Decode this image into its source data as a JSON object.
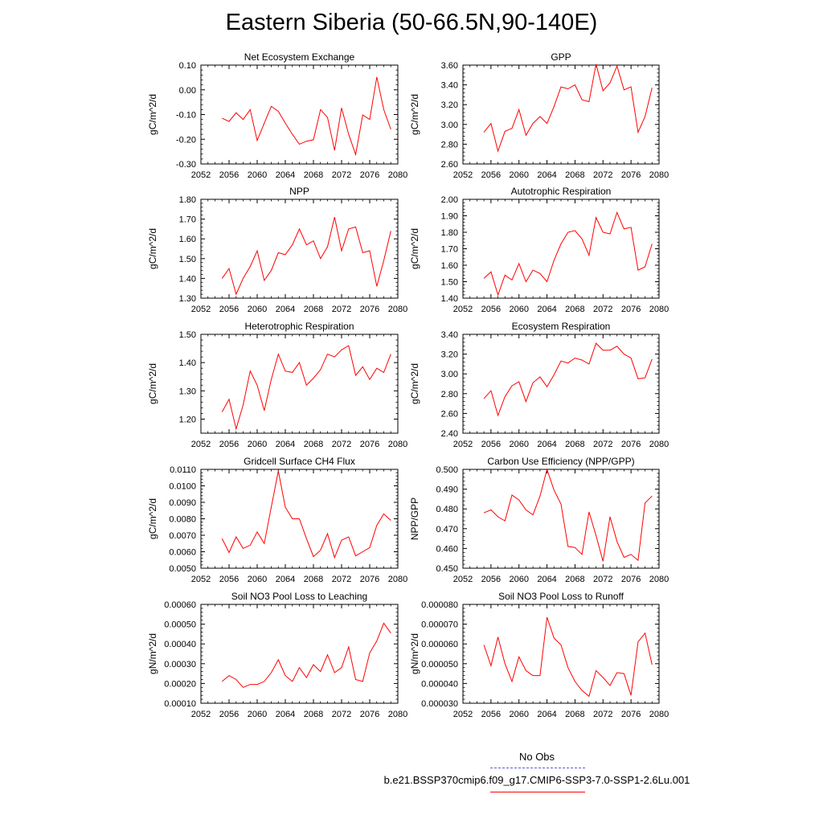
{
  "page": {
    "title": "Eastern Siberia (50-66.5N,90-140E)"
  },
  "legend": {
    "entries": [
      {
        "label": "No Obs",
        "color": "#5a5adc",
        "style": "dashed"
      },
      {
        "label": "b.e21.BSSP370cmip6.f09_g17.CMIP6-SSP3-7.0-SSP1-2.6Lu.001",
        "color": "#ff0000",
        "style": "solid"
      }
    ]
  },
  "chart_data": [
    {
      "type": "line",
      "title": "Net Ecosystem Exchange",
      "ylabel": "gC/m^2/d",
      "xlim": [
        2052,
        2080
      ],
      "ylim": [
        -0.3,
        0.1
      ],
      "xticks": [
        "2052",
        "2056",
        "2060",
        "2064",
        "2068",
        "2072",
        "2076",
        "2080"
      ],
      "yticks": [
        "-0.30",
        "-0.20",
        "-0.10",
        "0.00",
        "0.10"
      ],
      "x": [
        2055,
        2056,
        2057,
        2058,
        2059,
        2060,
        2061,
        2062,
        2063,
        2064,
        2065,
        2066,
        2067,
        2068,
        2069,
        2070,
        2071,
        2072,
        2073,
        2074,
        2075,
        2076,
        2077,
        2078,
        2079
      ],
      "series": [
        {
          "color": "#ff0000",
          "values": [
            -0.115,
            -0.128,
            -0.093,
            -0.12,
            -0.08,
            -0.205,
            -0.135,
            -0.067,
            -0.087,
            -0.135,
            -0.18,
            -0.22,
            -0.208,
            -0.202,
            -0.08,
            -0.112,
            -0.245,
            -0.073,
            -0.18,
            -0.262,
            -0.102,
            -0.12,
            0.052,
            -0.08,
            -0.16
          ]
        }
      ]
    },
    {
      "type": "line",
      "title": "GPP",
      "ylabel": "gC/m^2/d",
      "xlim": [
        2052,
        2080
      ],
      "ylim": [
        2.6,
        3.6
      ],
      "xticks": [
        "2052",
        "2056",
        "2060",
        "2064",
        "2068",
        "2072",
        "2076",
        "2080"
      ],
      "yticks": [
        "2.60",
        "2.80",
        "3.00",
        "3.20",
        "3.40",
        "3.60"
      ],
      "x": [
        2055,
        2056,
        2057,
        2058,
        2059,
        2060,
        2061,
        2062,
        2063,
        2064,
        2065,
        2066,
        2067,
        2068,
        2069,
        2070,
        2071,
        2072,
        2073,
        2074,
        2075,
        2076,
        2077,
        2078,
        2079
      ],
      "series": [
        {
          "color": "#ff0000",
          "values": [
            2.92,
            3.01,
            2.73,
            2.93,
            2.96,
            3.15,
            2.89,
            3.01,
            3.08,
            3.01,
            3.18,
            3.38,
            3.36,
            3.4,
            3.25,
            3.23,
            3.61,
            3.34,
            3.42,
            3.59,
            3.35,
            3.38,
            2.92,
            3.08,
            3.37
          ]
        }
      ]
    },
    {
      "type": "line",
      "title": "NPP",
      "ylabel": "gC/m^2/d",
      "xlim": [
        2052,
        2080
      ],
      "ylim": [
        1.3,
        1.8
      ],
      "xticks": [
        "2052",
        "2056",
        "2060",
        "2064",
        "2068",
        "2072",
        "2076",
        "2080"
      ],
      "yticks": [
        "1.30",
        "1.40",
        "1.50",
        "1.60",
        "1.70",
        "1.80"
      ],
      "x": [
        2055,
        2056,
        2057,
        2058,
        2059,
        2060,
        2061,
        2062,
        2063,
        2064,
        2065,
        2066,
        2067,
        2068,
        2069,
        2070,
        2071,
        2072,
        2073,
        2074,
        2075,
        2076,
        2077,
        2078,
        2079
      ],
      "series": [
        {
          "color": "#ff0000",
          "values": [
            1.4,
            1.45,
            1.32,
            1.4,
            1.46,
            1.54,
            1.39,
            1.44,
            1.53,
            1.52,
            1.57,
            1.65,
            1.57,
            1.59,
            1.5,
            1.56,
            1.71,
            1.54,
            1.65,
            1.66,
            1.53,
            1.54,
            1.36,
            1.49,
            1.64
          ]
        }
      ]
    },
    {
      "type": "line",
      "title": "Autotrophic Respiration",
      "ylabel": "gC/m^2/d",
      "xlim": [
        2052,
        2080
      ],
      "ylim": [
        1.4,
        2.0
      ],
      "xticks": [
        "2052",
        "2056",
        "2060",
        "2064",
        "2068",
        "2072",
        "2076",
        "2080"
      ],
      "yticks": [
        "1.40",
        "1.50",
        "1.60",
        "1.70",
        "1.80",
        "1.90",
        "2.00"
      ],
      "x": [
        2055,
        2056,
        2057,
        2058,
        2059,
        2060,
        2061,
        2062,
        2063,
        2064,
        2065,
        2066,
        2067,
        2068,
        2069,
        2070,
        2071,
        2072,
        2073,
        2074,
        2075,
        2076,
        2077,
        2078,
        2079
      ],
      "series": [
        {
          "color": "#ff0000",
          "values": [
            1.52,
            1.56,
            1.42,
            1.54,
            1.51,
            1.61,
            1.5,
            1.57,
            1.55,
            1.5,
            1.63,
            1.73,
            1.8,
            1.81,
            1.76,
            1.66,
            1.89,
            1.8,
            1.79,
            1.92,
            1.82,
            1.83,
            1.57,
            1.59,
            1.73
          ]
        }
      ]
    },
    {
      "type": "line",
      "title": "Heterotrophic Respiration",
      "ylabel": "gC/m^2/d",
      "xlim": [
        2052,
        2080
      ],
      "ylim": [
        1.15,
        1.5
      ],
      "xticks": [
        "2052",
        "2056",
        "2060",
        "2064",
        "2068",
        "2072",
        "2076",
        "2080"
      ],
      "yticks": [
        "1.20",
        "1.30",
        "1.40",
        "1.50"
      ],
      "x": [
        2055,
        2056,
        2057,
        2058,
        2059,
        2060,
        2061,
        2062,
        2063,
        2064,
        2065,
        2066,
        2067,
        2068,
        2069,
        2070,
        2071,
        2072,
        2073,
        2074,
        2075,
        2076,
        2077,
        2078,
        2079
      ],
      "series": [
        {
          "color": "#ff0000",
          "values": [
            1.225,
            1.27,
            1.165,
            1.25,
            1.37,
            1.32,
            1.23,
            1.34,
            1.43,
            1.37,
            1.365,
            1.4,
            1.32,
            1.345,
            1.375,
            1.43,
            1.42,
            1.445,
            1.46,
            1.355,
            1.385,
            1.34,
            1.38,
            1.365,
            1.43
          ]
        }
      ]
    },
    {
      "type": "line",
      "title": "Ecosystem Respiration",
      "ylabel": "gC/m^2/d",
      "xlim": [
        2052,
        2080
      ],
      "ylim": [
        2.4,
        3.4
      ],
      "xticks": [
        "2052",
        "2056",
        "2060",
        "2064",
        "2068",
        "2072",
        "2076",
        "2080"
      ],
      "yticks": [
        "2.40",
        "2.60",
        "2.80",
        "3.00",
        "3.20",
        "3.40"
      ],
      "x": [
        2055,
        2056,
        2057,
        2058,
        2059,
        2060,
        2061,
        2062,
        2063,
        2064,
        2065,
        2066,
        2067,
        2068,
        2069,
        2070,
        2071,
        2072,
        2073,
        2074,
        2075,
        2076,
        2077,
        2078,
        2079
      ],
      "series": [
        {
          "color": "#ff0000",
          "values": [
            2.75,
            2.83,
            2.58,
            2.77,
            2.88,
            2.92,
            2.72,
            2.91,
            2.97,
            2.87,
            2.99,
            3.13,
            3.11,
            3.16,
            3.14,
            3.1,
            3.31,
            3.24,
            3.24,
            3.28,
            3.2,
            3.16,
            2.95,
            2.96,
            3.15
          ]
        }
      ]
    },
    {
      "type": "line",
      "title": "Gridcell Surface CH4 Flux",
      "ylabel": "gC/m^2/d",
      "xlim": [
        2052,
        2080
      ],
      "ylim": [
        0.005,
        0.011
      ],
      "xticks": [
        "2052",
        "2056",
        "2060",
        "2064",
        "2068",
        "2072",
        "2076",
        "2080"
      ],
      "yticks": [
        "0.0050",
        "0.0060",
        "0.0070",
        "0.0080",
        "0.0090",
        "0.0100",
        "0.0110"
      ],
      "x": [
        2055,
        2056,
        2057,
        2058,
        2059,
        2060,
        2061,
        2062,
        2063,
        2064,
        2065,
        2066,
        2067,
        2068,
        2069,
        2070,
        2071,
        2072,
        2073,
        2074,
        2075,
        2076,
        2077,
        2078,
        2079
      ],
      "series": [
        {
          "color": "#ff0000",
          "values": [
            0.0068,
            0.00595,
            0.0069,
            0.0062,
            0.0064,
            0.0072,
            0.0065,
            0.0087,
            0.0109,
            0.0087,
            0.008,
            0.008,
            0.0068,
            0.0057,
            0.0061,
            0.0071,
            0.00565,
            0.0067,
            0.0069,
            0.00575,
            0.006,
            0.00625,
            0.0076,
            0.0083,
            0.0079
          ]
        }
      ]
    },
    {
      "type": "line",
      "title": "Carbon Use Efficiency (NPP/GPP)",
      "ylabel": "NPP/GPP",
      "xlim": [
        2052,
        2080
      ],
      "ylim": [
        0.45,
        0.5
      ],
      "xticks": [
        "2052",
        "2056",
        "2060",
        "2064",
        "2068",
        "2072",
        "2076",
        "2080"
      ],
      "yticks": [
        "0.450",
        "0.460",
        "0.470",
        "0.480",
        "0.490",
        "0.500"
      ],
      "x": [
        2055,
        2056,
        2057,
        2058,
        2059,
        2060,
        2061,
        2062,
        2063,
        2064,
        2065,
        2066,
        2067,
        2068,
        2069,
        2070,
        2071,
        2072,
        2073,
        2074,
        2075,
        2076,
        2077,
        2078,
        2079
      ],
      "series": [
        {
          "color": "#ff0000",
          "values": [
            0.478,
            0.4795,
            0.476,
            0.474,
            0.487,
            0.4845,
            0.4795,
            0.477,
            0.4865,
            0.5,
            0.4895,
            0.4825,
            0.461,
            0.4605,
            0.457,
            0.4785,
            0.4665,
            0.4535,
            0.476,
            0.4635,
            0.4555,
            0.457,
            0.454,
            0.483,
            0.4865
          ]
        }
      ]
    },
    {
      "type": "line",
      "title": "Soil NO3 Pool Loss to Leaching",
      "ylabel": "gN/m^2/d",
      "xlim": [
        2052,
        2080
      ],
      "ylim": [
        0.0001,
        0.0006
      ],
      "xticks": [
        "2052",
        "2056",
        "2060",
        "2064",
        "2068",
        "2072",
        "2076",
        "2080"
      ],
      "yticks": [
        "0.00010",
        "0.00020",
        "0.00030",
        "0.00040",
        "0.00050",
        "0.00060"
      ],
      "x": [
        2055,
        2056,
        2057,
        2058,
        2059,
        2060,
        2061,
        2062,
        2063,
        2064,
        2065,
        2066,
        2067,
        2068,
        2069,
        2070,
        2071,
        2072,
        2073,
        2074,
        2075,
        2076,
        2077,
        2078,
        2079
      ],
      "series": [
        {
          "color": "#ff0000",
          "values": [
            0.00021,
            0.00024,
            0.00022,
            0.00018,
            0.000195,
            0.000195,
            0.00021,
            0.000255,
            0.00032,
            0.00024,
            0.00021,
            0.00028,
            0.00023,
            0.000295,
            0.00026,
            0.000345,
            0.000255,
            0.00028,
            0.000385,
            0.00022,
            0.00021,
            0.000355,
            0.000415,
            0.000505,
            0.000455
          ]
        }
      ]
    },
    {
      "type": "line",
      "title": "Soil NO3 Pool Loss to Runoff",
      "ylabel": "gN/m^2/d",
      "xlim": [
        2052,
        2080
      ],
      "ylim": [
        3e-05,
        8e-05
      ],
      "xticks": [
        "2052",
        "2056",
        "2060",
        "2064",
        "2068",
        "2072",
        "2076",
        "2080"
      ],
      "yticks": [
        "0.000030",
        "0.000040",
        "0.000050",
        "0.000060",
        "0.000070",
        "0.000080"
      ],
      "x": [
        2055,
        2056,
        2057,
        2058,
        2059,
        2060,
        2061,
        2062,
        2063,
        2064,
        2065,
        2066,
        2067,
        2068,
        2069,
        2070,
        2071,
        2072,
        2073,
        2074,
        2075,
        2076,
        2077,
        2078,
        2079
      ],
      "series": [
        {
          "color": "#ff0000",
          "values": [
            5.95e-05,
            4.9e-05,
            6.35e-05,
            5e-05,
            4.1e-05,
            5.35e-05,
            4.65e-05,
            4.4e-05,
            4.4e-05,
            7.35e-05,
            6.3e-05,
            5.95e-05,
            4.8e-05,
            4.1e-05,
            3.65e-05,
            3.35e-05,
            4.65e-05,
            4.3e-05,
            3.9e-05,
            4.55e-05,
            4.5e-05,
            3.4e-05,
            6.1e-05,
            6.55e-05,
            4.95e-05
          ]
        }
      ]
    }
  ]
}
